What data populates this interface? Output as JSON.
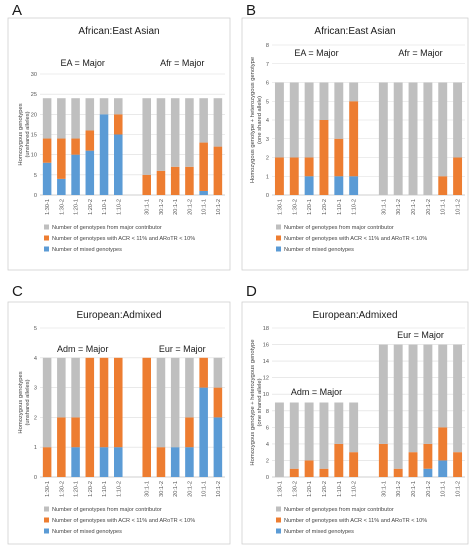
{
  "colors": {
    "major": "#bfbfbf",
    "acr": "#ed7d31",
    "mixed": "#5b9bd5"
  },
  "legend": [
    {
      "key": "major",
      "label": "Number of genotypes from major contributor"
    },
    {
      "key": "acr",
      "label": "Number of genotypes with ACR < 11% and ARoTR < 10%"
    },
    {
      "key": "mixed",
      "label": "Number of mixed genotypes"
    }
  ],
  "chart_data": [
    {
      "panel": "A",
      "type": "bar",
      "stacked": true,
      "title": "African:East Asian",
      "ylabel": [
        "Homozygous genotypes",
        "(unshared alleles)"
      ],
      "ylim": [
        0,
        30
      ],
      "yticks": [
        0,
        5,
        10,
        15,
        20,
        25,
        30
      ],
      "annotations": [
        {
          "text": "EA = Major",
          "group": 0
        },
        {
          "text": "Afr = Major",
          "group": 1
        }
      ],
      "groups": [
        {
          "categories": [
            "1:30-1",
            "1:30-2",
            "1:20-1",
            "1:20-2",
            "1:10-1",
            "1:10-2"
          ],
          "series": {
            "mixed": [
              8,
              4,
              10,
              11,
              20,
              15
            ],
            "acr": [
              6,
              10,
              4,
              5,
              0,
              5
            ],
            "major": [
              10,
              10,
              10,
              8,
              4,
              4
            ]
          }
        },
        {
          "categories": [
            "30:1-1",
            "30:1-2",
            "20:1-1",
            "20:1-2",
            "10:1-1",
            "10:1-2"
          ],
          "series": {
            "mixed": [
              0,
              0,
              0,
              0,
              1,
              0
            ],
            "acr": [
              5,
              6,
              7,
              7,
              12,
              12
            ],
            "major": [
              19,
              18,
              17,
              17,
              11,
              12
            ]
          }
        }
      ]
    },
    {
      "panel": "B",
      "type": "bar",
      "stacked": true,
      "title": "African:East Asian",
      "ylabel": [
        "Homozygous genotype + heterozygous genotype",
        "(one shared allele)"
      ],
      "ylim": [
        0,
        8
      ],
      "yticks": [
        0,
        1,
        2,
        3,
        4,
        5,
        6,
        7,
        8
      ],
      "annotations": [
        {
          "text": "EA = Major",
          "group": 0
        },
        {
          "text": "Afr = Major",
          "group": 1
        }
      ],
      "groups": [
        {
          "categories": [
            "1:30-1",
            "1:30-2",
            "1:20-1",
            "1:20-2",
            "1:10-1",
            "1:10-2"
          ],
          "series": {
            "mixed": [
              0,
              0,
              1,
              0,
              1,
              1
            ],
            "acr": [
              2,
              2,
              1,
              4,
              2,
              4
            ],
            "major": [
              4,
              4,
              4,
              2,
              3,
              1
            ]
          }
        },
        {
          "categories": [
            "30:1-1",
            "30:1-2",
            "20:1-1",
            "20:1-2",
            "10:1-1",
            "10:1-2"
          ],
          "series": {
            "mixed": [
              0,
              0,
              0,
              0,
              0,
              0
            ],
            "acr": [
              0,
              0,
              0,
              0,
              1,
              2
            ],
            "major": [
              6,
              6,
              6,
              6,
              5,
              4
            ]
          }
        }
      ]
    },
    {
      "panel": "C",
      "type": "bar",
      "stacked": true,
      "title": "European:Admixed",
      "ylabel": [
        "Homozygous genotypes",
        "(unshared alleles)"
      ],
      "ylim": [
        0,
        5
      ],
      "yticks": [
        0,
        1,
        2,
        3,
        4,
        5
      ],
      "annotations": [
        {
          "text": "Adm = Major",
          "group": 0
        },
        {
          "text": "Eur = Major",
          "group": 1
        }
      ],
      "groups": [
        {
          "categories": [
            "1:30-1",
            "1:30-2",
            "1:20-1",
            "1:20-2",
            "1:10-1",
            "1:10-2"
          ],
          "series": {
            "mixed": [
              0,
              0,
              1,
              0,
              1,
              1
            ],
            "acr": [
              1,
              2,
              1,
              4,
              3,
              3
            ],
            "major": [
              3,
              2,
              2,
              0,
              0,
              0
            ]
          }
        },
        {
          "categories": [
            "30:1-1",
            "30:1-2",
            "20:1-1",
            "20:1-2",
            "10:1-1",
            "10:1-2"
          ],
          "series": {
            "mixed": [
              0,
              0,
              1,
              1,
              3,
              2
            ],
            "acr": [
              4,
              1,
              0,
              1,
              1,
              1
            ],
            "major": [
              0,
              3,
              3,
              2,
              0,
              1
            ]
          }
        }
      ]
    },
    {
      "panel": "D",
      "type": "bar",
      "stacked": true,
      "title": "European:Admixed",
      "ylabel": [
        "Homozygous genotype + heterozygous genotype",
        "(one shared allele)"
      ],
      "ylim": [
        0,
        18
      ],
      "yticks": [
        0,
        2,
        4,
        6,
        8,
        10,
        12,
        14,
        16,
        18
      ],
      "annotations": [
        {
          "text": "Adm = Major",
          "group": 0
        },
        {
          "text": "Eur = Major",
          "group": 1
        }
      ],
      "groups": [
        {
          "categories": [
            "1:30-1",
            "1:30-2",
            "1:20-1",
            "1:20-2",
            "1:10-1",
            "1:10-2"
          ],
          "series": {
            "mixed": [
              0,
              0,
              0,
              0,
              0,
              0
            ],
            "acr": [
              0,
              1,
              2,
              1,
              4,
              3
            ],
            "major": [
              9,
              8,
              7,
              8,
              5,
              6
            ]
          }
        },
        {
          "categories": [
            "30:1-1",
            "30:1-2",
            "20:1-1",
            "20:1-2",
            "10:1-1",
            "10:1-2"
          ],
          "series": {
            "mixed": [
              0,
              0,
              0,
              1,
              2,
              0
            ],
            "acr": [
              4,
              1,
              3,
              3,
              4,
              3
            ],
            "major": [
              12,
              15,
              13,
              12,
              10,
              13
            ]
          }
        }
      ]
    }
  ]
}
